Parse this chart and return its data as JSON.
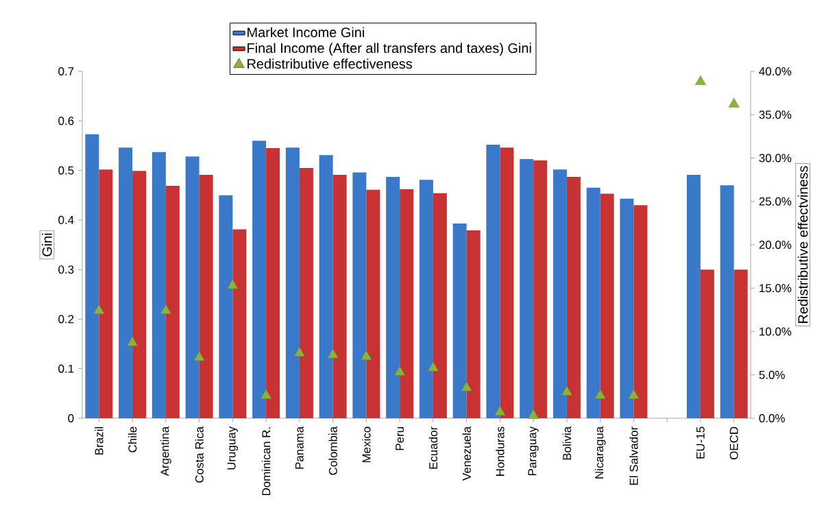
{
  "chart_data": {
    "type": "bar",
    "categories": [
      "Brazil",
      "Chile",
      "Argentina",
      "Costa Rica",
      "Uruguay",
      "Dominican R.",
      "Panama",
      "Colombia",
      "Mexico",
      "Peru",
      "Ecuador",
      "Venezuela",
      "Honduras",
      "Paraguay",
      "Bolivia",
      "Nicaragua",
      "El Salvador",
      null,
      "EU-15",
      "OECD"
    ],
    "series": [
      {
        "name": "Market Income Gini",
        "color": "#3a78c9",
        "values": [
          0.573,
          0.546,
          0.537,
          0.528,
          0.45,
          0.56,
          0.546,
          0.531,
          0.496,
          0.487,
          0.481,
          0.393,
          0.552,
          0.523,
          0.502,
          0.465,
          0.443,
          null,
          0.491,
          0.47
        ]
      },
      {
        "name": "Final Income (After all transfers and taxes) Gini",
        "color": "#c83232",
        "values": [
          0.502,
          0.499,
          0.469,
          0.491,
          0.381,
          0.545,
          0.505,
          0.491,
          0.461,
          0.462,
          0.454,
          0.379,
          0.546,
          0.52,
          0.487,
          0.453,
          0.43,
          null,
          0.3,
          0.3
        ]
      },
      {
        "name": "Redistributive effectiveness",
        "type": "scatter",
        "axis": "y2",
        "marker": "triangle",
        "color": "#8db23a",
        "values": [
          12.4,
          8.7,
          12.4,
          7.0,
          15.3,
          2.6,
          7.5,
          7.3,
          7.1,
          5.3,
          5.8,
          3.5,
          0.7,
          0.3,
          3.0,
          2.6,
          2.6,
          null,
          38.8,
          36.2
        ]
      }
    ],
    "ylabel": "Gini",
    "y2label": "Redistributive effectviness",
    "ylim": [
      0,
      0.7
    ],
    "yticks": [
      0,
      0.1,
      0.2,
      0.3,
      0.4,
      0.5,
      0.6,
      0.7
    ],
    "y2lim": [
      0,
      40
    ],
    "y2ticks": [
      {
        "value": 0,
        "label": "0.0%"
      },
      {
        "value": 5,
        "label": "5.0%"
      },
      {
        "value": 10,
        "label": "10.0%"
      },
      {
        "value": 15,
        "label": "15.0%"
      },
      {
        "value": 20,
        "label": "20.0%"
      },
      {
        "value": 25,
        "label": "25.0%"
      },
      {
        "value": 30,
        "label": "30.0%"
      },
      {
        "value": 35,
        "label": "35.0%"
      },
      {
        "value": 40,
        "label": "40.0%"
      }
    ],
    "legend": "top"
  }
}
